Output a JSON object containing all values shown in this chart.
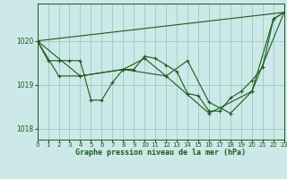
{
  "xlabel": "Graphe pression niveau de la mer (hPa)",
  "bg_color": "#cce8e8",
  "grid_color": "#99ccbb",
  "line_color": "#1a5c1a",
  "ylim": [
    1017.75,
    1020.85
  ],
  "xlim": [
    0,
    23
  ],
  "yticks": [
    1018,
    1019,
    1020
  ],
  "xticks": [
    0,
    1,
    2,
    3,
    4,
    5,
    6,
    7,
    8,
    9,
    10,
    11,
    12,
    13,
    14,
    15,
    16,
    17,
    18,
    19,
    20,
    21,
    22,
    23
  ],
  "lines": [
    {
      "x": [
        0,
        1,
        2,
        3,
        4,
        5,
        6,
        7,
        8,
        9,
        10,
        11,
        12,
        13,
        14,
        15,
        16,
        17,
        18,
        19,
        20,
        21,
        22,
        23
      ],
      "y": [
        1020.0,
        1019.55,
        1019.55,
        1019.55,
        1019.55,
        1018.65,
        1018.65,
        1019.05,
        1019.35,
        1019.35,
        1019.65,
        1019.6,
        1019.45,
        1019.3,
        1018.8,
        1018.75,
        1018.4,
        1018.4,
        1018.7,
        1018.85,
        1019.1,
        1019.4,
        1020.5,
        1020.65
      ],
      "markers": true,
      "lw": 0.8
    },
    {
      "x": [
        0,
        2,
        4,
        8,
        10,
        12,
        14,
        16,
        18,
        20,
        22,
        23
      ],
      "y": [
        1020.0,
        1019.2,
        1019.2,
        1019.35,
        1019.6,
        1019.2,
        1019.55,
        1018.6,
        1018.35,
        1018.85,
        1020.5,
        1020.65
      ],
      "markers": true,
      "lw": 0.8
    },
    {
      "x": [
        0,
        23
      ],
      "y": [
        1020.0,
        1020.65
      ],
      "markers": false,
      "lw": 0.8
    },
    {
      "x": [
        0,
        4,
        8,
        12,
        16,
        20,
        23
      ],
      "y": [
        1020.0,
        1019.2,
        1019.35,
        1019.2,
        1018.35,
        1018.85,
        1020.65
      ],
      "markers": true,
      "lw": 0.8
    }
  ]
}
